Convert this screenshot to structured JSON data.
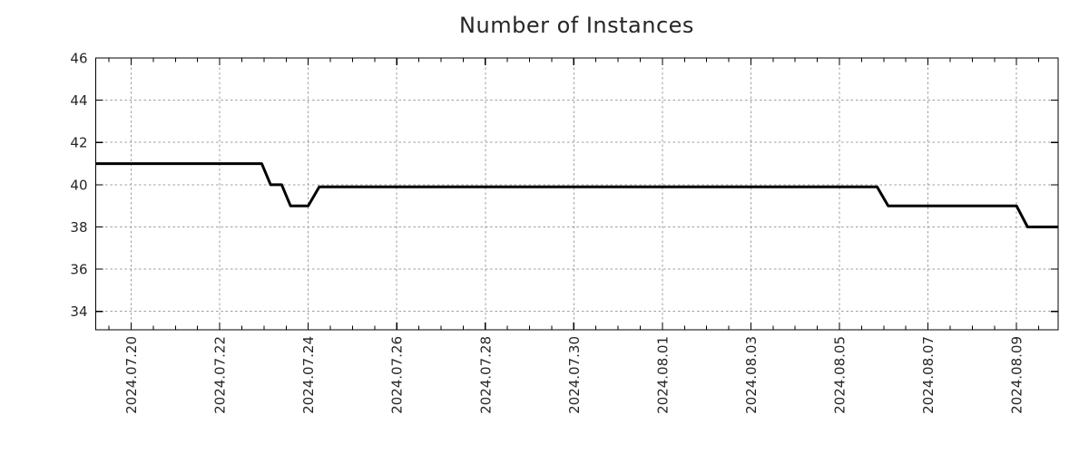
{
  "page": {
    "background": "#ffffff"
  },
  "chart_data": {
    "type": "line",
    "title": "Number of Instances",
    "legend": "none",
    "grid": true,
    "colors": {
      "line": "#000000",
      "grid": "#9e9e9e",
      "axis": "#000000",
      "text": "#262626",
      "background": "#ffffff"
    },
    "x_axis": {
      "x_unit": "days since 2024-07-19 00:00",
      "range": [
        0.2,
        21.94
      ],
      "minor_tick_step": 0.5,
      "major_ticks": [
        {
          "d": 1,
          "label": "2024.07.20"
        },
        {
          "d": 3,
          "label": "2024.07.22"
        },
        {
          "d": 5,
          "label": "2024.07.24"
        },
        {
          "d": 7,
          "label": "2024.07.26"
        },
        {
          "d": 9,
          "label": "2024.07.28"
        },
        {
          "d": 11,
          "label": "2024.07.30"
        },
        {
          "d": 13,
          "label": "2024.08.01"
        },
        {
          "d": 15,
          "label": "2024.08.03"
        },
        {
          "d": 17,
          "label": "2024.08.05"
        },
        {
          "d": 19,
          "label": "2024.08.07"
        },
        {
          "d": 21,
          "label": "2024.08.09"
        }
      ]
    },
    "y_axis": {
      "range": [
        33.13,
        46
      ],
      "major_ticks": [
        34,
        36,
        38,
        40,
        42,
        44,
        46
      ]
    },
    "series": [
      {
        "name": "Number of Instances",
        "color": "#000000",
        "stroke_width": 3,
        "points": [
          [
            0.2,
            41
          ],
          [
            3.95,
            41
          ],
          [
            4.15,
            40
          ],
          [
            4.4,
            40
          ],
          [
            4.6,
            39
          ],
          [
            5.0,
            39
          ],
          [
            5.25,
            39.9
          ],
          [
            17.85,
            39.9
          ],
          [
            18.1,
            39
          ],
          [
            21.0,
            39
          ],
          [
            21.25,
            38
          ],
          [
            21.94,
            38
          ]
        ]
      }
    ]
  }
}
